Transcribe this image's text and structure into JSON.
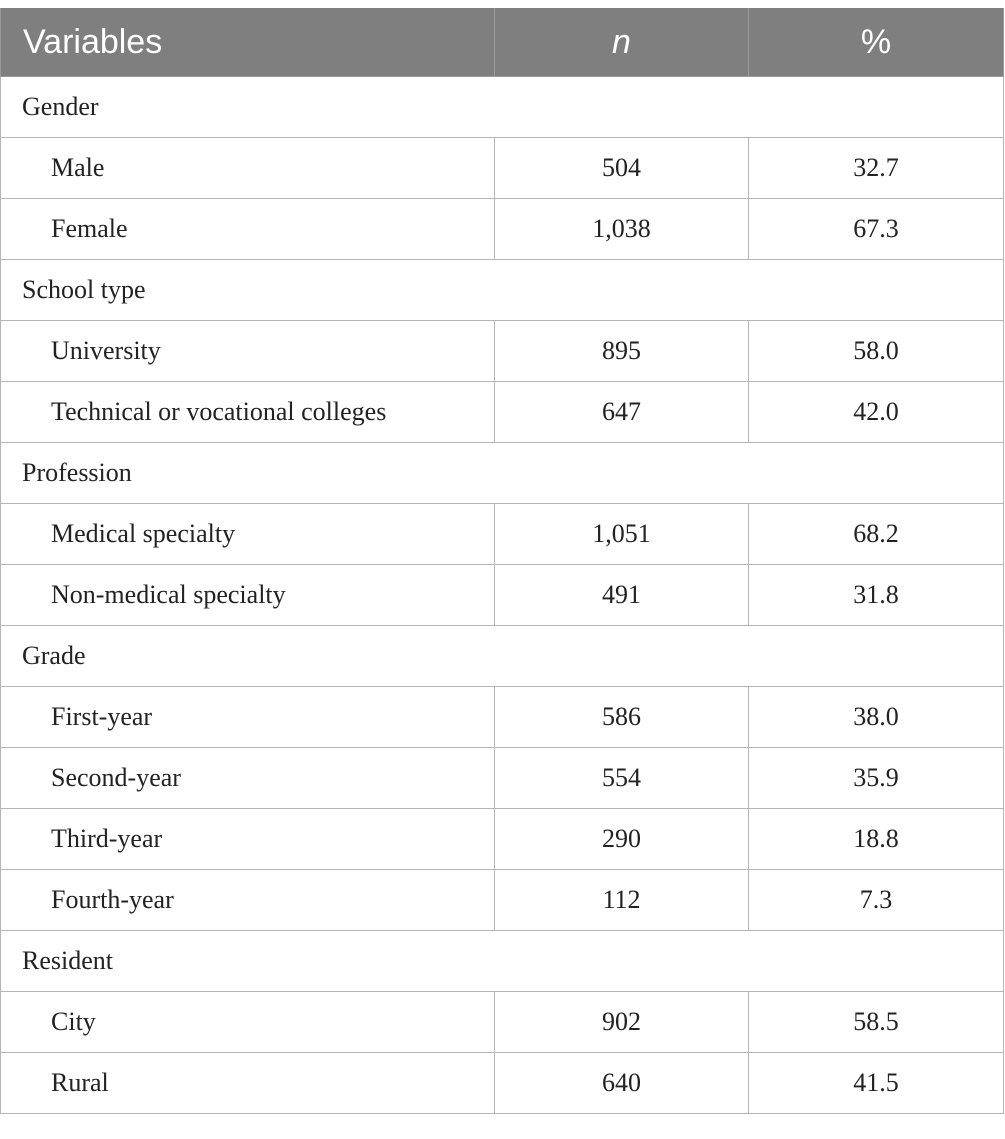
{
  "table": {
    "headers": [
      "Variables",
      "n",
      "%"
    ],
    "groups": [
      {
        "label": "Gender",
        "rows": [
          {
            "label": "Male",
            "n": "504",
            "pct": "32.7"
          },
          {
            "label": "Female",
            "n": "1,038",
            "pct": "67.3"
          }
        ]
      },
      {
        "label": "School type",
        "rows": [
          {
            "label": "University",
            "n": "895",
            "pct": "58.0"
          },
          {
            "label": "Technical or vocational colleges",
            "n": "647",
            "pct": "42.0"
          }
        ]
      },
      {
        "label": "Profession",
        "rows": [
          {
            "label": "Medical specialty",
            "n": "1,051",
            "pct": "68.2"
          },
          {
            "label": "Non-medical specialty",
            "n": "491",
            "pct": "31.8"
          }
        ]
      },
      {
        "label": "Grade",
        "rows": [
          {
            "label": "First-year",
            "n": "586",
            "pct": "38.0"
          },
          {
            "label": "Second-year",
            "n": "554",
            "pct": "35.9"
          },
          {
            "label": "Third-year",
            "n": "290",
            "pct": "18.8"
          },
          {
            "label": "Fourth-year",
            "n": "112",
            "pct": "7.3"
          }
        ]
      },
      {
        "label": "Resident",
        "rows": [
          {
            "label": "City",
            "n": "902",
            "pct": "58.5"
          },
          {
            "label": "Rural",
            "n": "640",
            "pct": "41.5"
          }
        ]
      }
    ]
  },
  "colors": {
    "header_bg": "#7f7f7f",
    "header_text": "#ffffff",
    "border": "#b5b5b5",
    "text": "#222222"
  }
}
